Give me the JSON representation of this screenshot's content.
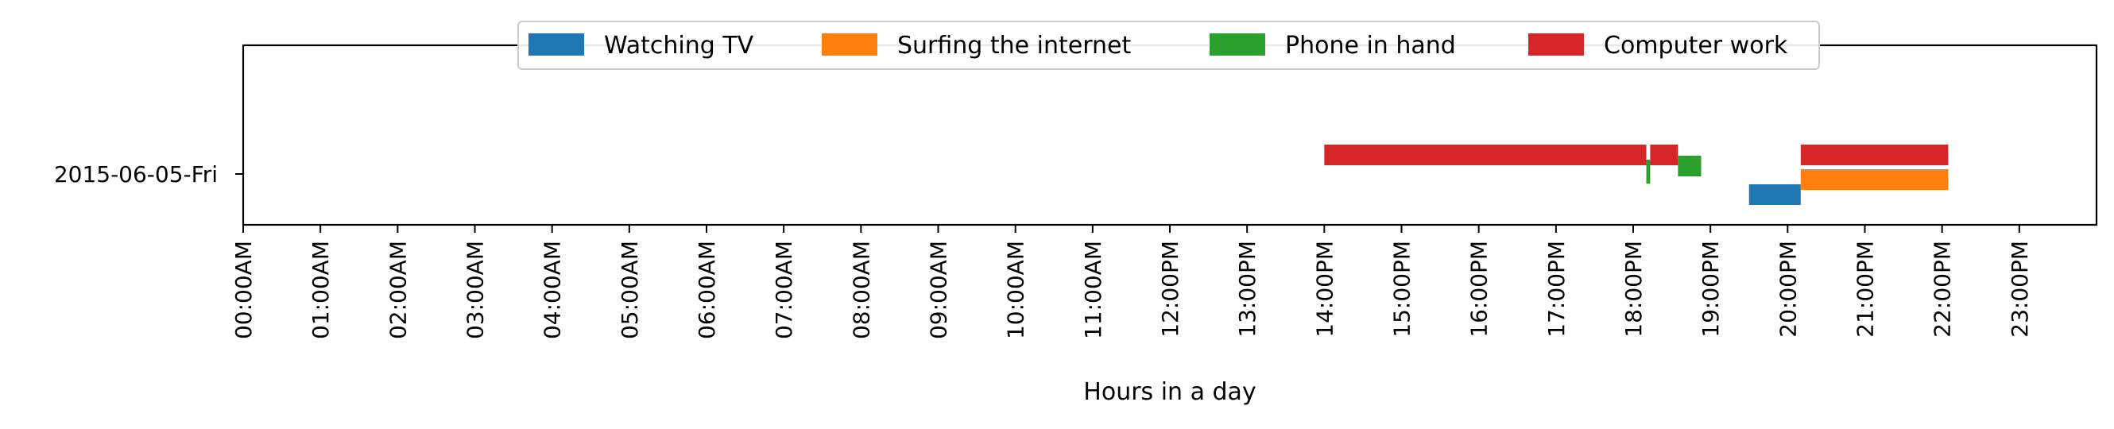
{
  "chart_data": {
    "type": "bar",
    "orientation": "horizontal-timeline",
    "title": "",
    "xlabel": "Hours in a day",
    "ylabel": "",
    "xlim": [
      0,
      24
    ],
    "x_tick_values": [
      0,
      1,
      2,
      3,
      4,
      5,
      6,
      7,
      8,
      9,
      10,
      11,
      12,
      13,
      14,
      15,
      16,
      17,
      18,
      19,
      20,
      21,
      22,
      23
    ],
    "x_tick_labels": [
      "00:00AM",
      "01:00AM",
      "02:00AM",
      "03:00AM",
      "04:00AM",
      "05:00AM",
      "06:00AM",
      "07:00AM",
      "08:00AM",
      "09:00AM",
      "10:00AM",
      "11:00AM",
      "12:00PM",
      "13:00PM",
      "14:00PM",
      "15:00PM",
      "16:00PM",
      "17:00PM",
      "18:00PM",
      "19:00PM",
      "20:00PM",
      "21:00PM",
      "22:00PM",
      "23:00PM"
    ],
    "categories": [
      "2015-06-05-Fri"
    ],
    "grid": false,
    "legend_position": "top-center",
    "series": [
      {
        "name": "Watching TV",
        "color": "#1f77b4",
        "intervals": [
          {
            "day": "2015-06-05-Fri",
            "start": 19.5,
            "end": 20.17
          }
        ]
      },
      {
        "name": "Surfing the internet",
        "color": "#ff7f0e",
        "intervals": [
          {
            "day": "2015-06-05-Fri",
            "start": 20.17,
            "end": 22.08
          }
        ]
      },
      {
        "name": "Phone in hand",
        "color": "#2ca02c",
        "intervals": [
          {
            "day": "2015-06-05-Fri",
            "start": 18.17,
            "end": 18.22
          },
          {
            "day": "2015-06-05-Fri",
            "start": 18.58,
            "end": 18.88
          }
        ]
      },
      {
        "name": "Computer work",
        "color": "#d62728",
        "intervals": [
          {
            "day": "2015-06-05-Fri",
            "start": 14.0,
            "end": 18.17
          },
          {
            "day": "2015-06-05-Fri",
            "start": 18.22,
            "end": 18.58
          },
          {
            "day": "2015-06-05-Fri",
            "start": 20.17,
            "end": 22.08
          }
        ]
      }
    ]
  }
}
